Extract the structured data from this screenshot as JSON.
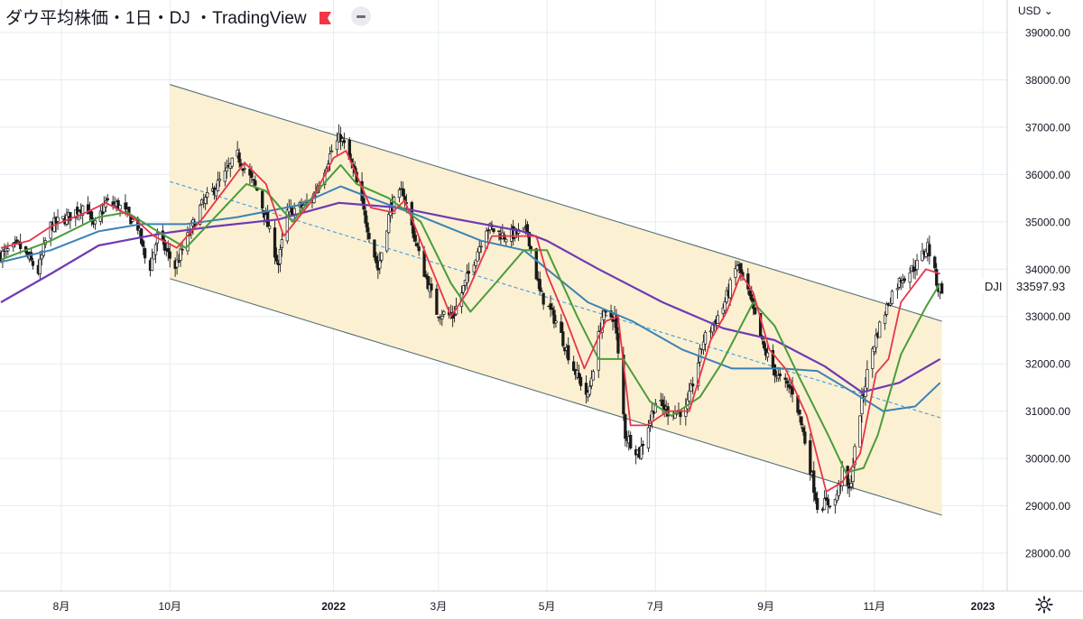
{
  "header": {
    "symbol_title": "ダウ平均株価・1日・DJ ・TradingView",
    "currency": "USD",
    "currency_caret": "⌄"
  },
  "last_price_label": {
    "symbol": "DJI",
    "value": "33597.93"
  },
  "colors": {
    "channel_fill": "#fbf0d2",
    "channel_line": "#56707a",
    "midline": "#3d9de6",
    "ma_short": "#e8344a",
    "ma_mid": "#4a9c3a",
    "ma_long1": "#3a83b6",
    "ma_long2": "#6f3ab3",
    "grid": "#e4ecf2",
    "candle": "#1a1a1a"
  },
  "chart_data": {
    "type": "candlestick",
    "title": "ダウ平均株価・1日・DJ ・TradingView",
    "currency": "USD",
    "ylim": [
      27300,
      39300
    ],
    "yticks": [
      28000,
      29000,
      30000,
      31000,
      32000,
      33000,
      34000,
      35000,
      36000,
      37000,
      38000,
      39000
    ],
    "ytick_labels": [
      "28000.00",
      "29000.00",
      "30000.00",
      "31000.00",
      "32000.00",
      "33000.00",
      "34000.00",
      "35000.00",
      "36000.00",
      "37000.00",
      "38000.00",
      "39000.00"
    ],
    "xtick_labels": [
      "8月",
      "10月",
      "2022",
      "3月",
      "5月",
      "7月",
      "9月",
      "11月",
      "2023"
    ],
    "xtick_dates": [
      "2021-08-01",
      "2021-10-01",
      "2022-01-01",
      "2022-03-01",
      "2022-05-01",
      "2022-07-01",
      "2022-09-01",
      "2022-11-01",
      "2023-01-01"
    ],
    "xlim": [
      "2021-06-28",
      "2022-12-29"
    ],
    "last_value": 33597.93,
    "close_path": [
      [
        "2021-06-28",
        34300
      ],
      [
        "2021-07-08",
        34500
      ],
      [
        "2021-07-19",
        33950
      ],
      [
        "2021-07-25",
        34900
      ],
      [
        "2021-08-05",
        35100
      ],
      [
        "2021-08-15",
        35400
      ],
      [
        "2021-08-19",
        34850
      ],
      [
        "2021-08-26",
        35400
      ],
      [
        "2021-09-02",
        35350
      ],
      [
        "2021-09-13",
        34900
      ],
      [
        "2021-09-19",
        33900
      ],
      [
        "2021-09-24",
        34700
      ],
      [
        "2021-10-04",
        34050
      ],
      [
        "2021-10-18",
        35300
      ],
      [
        "2021-11-01",
        36000
      ],
      [
        "2021-11-08",
        36400
      ],
      [
        "2021-11-20",
        35600
      ],
      [
        "2021-12-01",
        34100
      ],
      [
        "2021-12-06",
        35200
      ],
      [
        "2021-12-19",
        35400
      ],
      [
        "2021-12-31",
        36500
      ],
      [
        "2022-01-05",
        36800
      ],
      [
        "2022-01-12",
        36100
      ],
      [
        "2022-01-26",
        34000
      ],
      [
        "2022-02-02",
        35300
      ],
      [
        "2022-02-09",
        35650
      ],
      [
        "2022-02-18",
        34300
      ],
      [
        "2022-02-28",
        33100
      ],
      [
        "2022-03-09",
        33000
      ],
      [
        "2022-03-28",
        34900
      ],
      [
        "2022-04-07",
        34700
      ],
      [
        "2022-04-20",
        34800
      ],
      [
        "2022-04-27",
        33500
      ],
      [
        "2022-05-06",
        32900
      ],
      [
        "2022-05-16",
        31900
      ],
      [
        "2022-05-24",
        31300
      ],
      [
        "2022-06-01",
        33000
      ],
      [
        "2022-06-08",
        33000
      ],
      [
        "2022-06-14",
        30500
      ],
      [
        "2022-06-22",
        30100
      ],
      [
        "2022-07-01",
        31200
      ],
      [
        "2022-07-08",
        31000
      ],
      [
        "2022-07-18",
        31000
      ],
      [
        "2022-07-28",
        32500
      ],
      [
        "2022-08-08",
        33200
      ],
      [
        "2022-08-16",
        34100
      ],
      [
        "2022-08-22",
        33500
      ],
      [
        "2022-08-31",
        32300
      ],
      [
        "2022-09-08",
        31700
      ],
      [
        "2022-09-17",
        31400
      ],
      [
        "2022-09-24",
        30200
      ],
      [
        "2022-09-30",
        29000
      ],
      [
        "2022-10-10",
        29100
      ],
      [
        "2022-10-14",
        29700
      ],
      [
        "2022-10-18",
        29300
      ],
      [
        "2022-10-24",
        31000
      ],
      [
        "2022-10-30",
        32200
      ],
      [
        "2022-11-04",
        32800
      ],
      [
        "2022-11-11",
        33500
      ],
      [
        "2022-11-16",
        33800
      ],
      [
        "2022-11-25",
        34100
      ],
      [
        "2022-12-01",
        34500
      ],
      [
        "2022-12-07",
        33600
      ],
      [
        "2022-12-09",
        33597.93
      ]
    ],
    "series": [
      {
        "values": [
          [
            "2021-06-28",
            34450
          ],
          [
            "2021-07-14",
            34600
          ],
          [
            "2021-07-26",
            34900
          ],
          [
            "2021-08-15",
            35200
          ],
          [
            "2021-08-26",
            35400
          ],
          [
            "2021-09-10",
            35100
          ],
          [
            "2021-09-22",
            34700
          ],
          [
            "2021-10-05",
            34450
          ],
          [
            "2021-10-20",
            35100
          ],
          [
            "2021-11-03",
            35800
          ],
          [
            "2021-11-12",
            36250
          ],
          [
            "2021-11-24",
            35800
          ],
          [
            "2021-12-04",
            34700
          ],
          [
            "2021-12-19",
            35400
          ],
          [
            "2022-01-01",
            36350
          ],
          [
            "2022-01-08",
            36500
          ],
          [
            "2022-01-22",
            35300
          ],
          [
            "2022-02-03",
            35200
          ],
          [
            "2022-02-10",
            35450
          ],
          [
            "2022-02-22",
            34300
          ],
          [
            "2022-03-08",
            33000
          ],
          [
            "2022-03-17",
            33500
          ],
          [
            "2022-03-31",
            34700
          ],
          [
            "2022-04-11",
            34700
          ],
          [
            "2022-04-25",
            34700
          ],
          [
            "2022-05-01",
            33900
          ],
          [
            "2022-05-12",
            32900
          ],
          [
            "2022-05-22",
            31900
          ],
          [
            "2022-06-03",
            32900
          ],
          [
            "2022-06-10",
            33000
          ],
          [
            "2022-06-17",
            30700
          ],
          [
            "2022-06-26",
            30700
          ],
          [
            "2022-07-08",
            31000
          ],
          [
            "2022-07-20",
            31000
          ],
          [
            "2022-08-01",
            32500
          ],
          [
            "2022-08-10",
            33100
          ],
          [
            "2022-08-18",
            33900
          ],
          [
            "2022-08-25",
            33500
          ],
          [
            "2022-09-03",
            32300
          ],
          [
            "2022-09-12",
            31900
          ],
          [
            "2022-09-24",
            30900
          ],
          [
            "2022-10-05",
            29300
          ],
          [
            "2022-10-14",
            29500
          ],
          [
            "2022-10-24",
            30100
          ],
          [
            "2022-11-02",
            31800
          ],
          [
            "2022-11-09",
            32100
          ],
          [
            "2022-11-16",
            33300
          ],
          [
            "2022-11-30",
            34000
          ],
          [
            "2022-12-08",
            33900
          ]
        ]
      },
      {
        "values": [
          [
            "2021-06-28",
            34200
          ],
          [
            "2021-07-26",
            34600
          ],
          [
            "2021-08-22",
            35100
          ],
          [
            "2021-09-07",
            35200
          ],
          [
            "2021-09-24",
            34800
          ],
          [
            "2021-10-10",
            34450
          ],
          [
            "2021-10-29",
            35200
          ],
          [
            "2021-11-13",
            35800
          ],
          [
            "2021-11-24",
            35650
          ],
          [
            "2021-12-09",
            35000
          ],
          [
            "2021-12-24",
            35700
          ],
          [
            "2022-01-05",
            36200
          ],
          [
            "2022-01-14",
            35800
          ],
          [
            "2022-02-01",
            35500
          ],
          [
            "2022-02-19",
            35000
          ],
          [
            "2022-03-08",
            33700
          ],
          [
            "2022-03-19",
            33100
          ],
          [
            "2022-04-02",
            33700
          ],
          [
            "2022-04-18",
            34400
          ],
          [
            "2022-05-01",
            34400
          ],
          [
            "2022-05-18",
            33000
          ],
          [
            "2022-05-30",
            32100
          ],
          [
            "2022-06-13",
            32100
          ],
          [
            "2022-06-28",
            31200
          ],
          [
            "2022-07-10",
            30900
          ],
          [
            "2022-07-26",
            31300
          ],
          [
            "2022-08-07",
            32000
          ],
          [
            "2022-08-25",
            33300
          ],
          [
            "2022-09-06",
            32800
          ],
          [
            "2022-09-20",
            31700
          ],
          [
            "2022-10-06",
            30500
          ],
          [
            "2022-10-16",
            29700
          ],
          [
            "2022-10-26",
            29800
          ],
          [
            "2022-11-03",
            30500
          ],
          [
            "2022-11-16",
            32200
          ],
          [
            "2022-11-30",
            33200
          ],
          [
            "2022-12-08",
            33700
          ]
        ]
      },
      {
        "values": [
          [
            "2021-06-28",
            34150
          ],
          [
            "2021-07-26",
            34400
          ],
          [
            "2021-08-22",
            34800
          ],
          [
            "2021-09-15",
            34950
          ],
          [
            "2021-10-10",
            34950
          ],
          [
            "2021-11-08",
            35100
          ],
          [
            "2021-12-12",
            35350
          ],
          [
            "2022-01-05",
            35750
          ],
          [
            "2022-01-22",
            35500
          ],
          [
            "2022-02-20",
            35100
          ],
          [
            "2022-03-25",
            34600
          ],
          [
            "2022-04-18",
            34400
          ],
          [
            "2022-05-01",
            34000
          ],
          [
            "2022-05-24",
            33300
          ],
          [
            "2022-06-18",
            32900
          ],
          [
            "2022-07-16",
            32300
          ],
          [
            "2022-08-13",
            31900
          ],
          [
            "2022-09-10",
            31900
          ],
          [
            "2022-09-30",
            31850
          ],
          [
            "2022-10-20",
            31400
          ],
          [
            "2022-11-06",
            31000
          ],
          [
            "2022-11-24",
            31100
          ],
          [
            "2022-12-08",
            31600
          ]
        ]
      },
      {
        "values": [
          [
            "2021-06-28",
            33300
          ],
          [
            "2021-07-26",
            33900
          ],
          [
            "2021-08-22",
            34500
          ],
          [
            "2021-09-26",
            34750
          ],
          [
            "2021-10-25",
            34900
          ],
          [
            "2021-12-01",
            35050
          ],
          [
            "2022-01-04",
            35400
          ],
          [
            "2022-02-07",
            35300
          ],
          [
            "2022-03-12",
            35050
          ],
          [
            "2022-04-17",
            34800
          ],
          [
            "2022-05-01",
            34600
          ],
          [
            "2022-05-30",
            34000
          ],
          [
            "2022-07-05",
            33300
          ],
          [
            "2022-08-08",
            32750
          ],
          [
            "2022-09-06",
            32500
          ],
          [
            "2022-10-04",
            31950
          ],
          [
            "2022-10-25",
            31400
          ],
          [
            "2022-11-15",
            31600
          ],
          [
            "2022-12-08",
            32100
          ]
        ]
      }
    ],
    "channel": {
      "upper": [
        [
          "2021-10-01",
          37900
        ],
        [
          "2022-12-09",
          32900
        ]
      ],
      "lower": [
        [
          "2021-10-01",
          33800
        ],
        [
          "2022-12-09",
          28800
        ]
      ],
      "mid": [
        [
          "2021-10-01",
          35850
        ],
        [
          "2022-12-09",
          30850
        ]
      ]
    },
    "grid": true,
    "legend": false
  }
}
